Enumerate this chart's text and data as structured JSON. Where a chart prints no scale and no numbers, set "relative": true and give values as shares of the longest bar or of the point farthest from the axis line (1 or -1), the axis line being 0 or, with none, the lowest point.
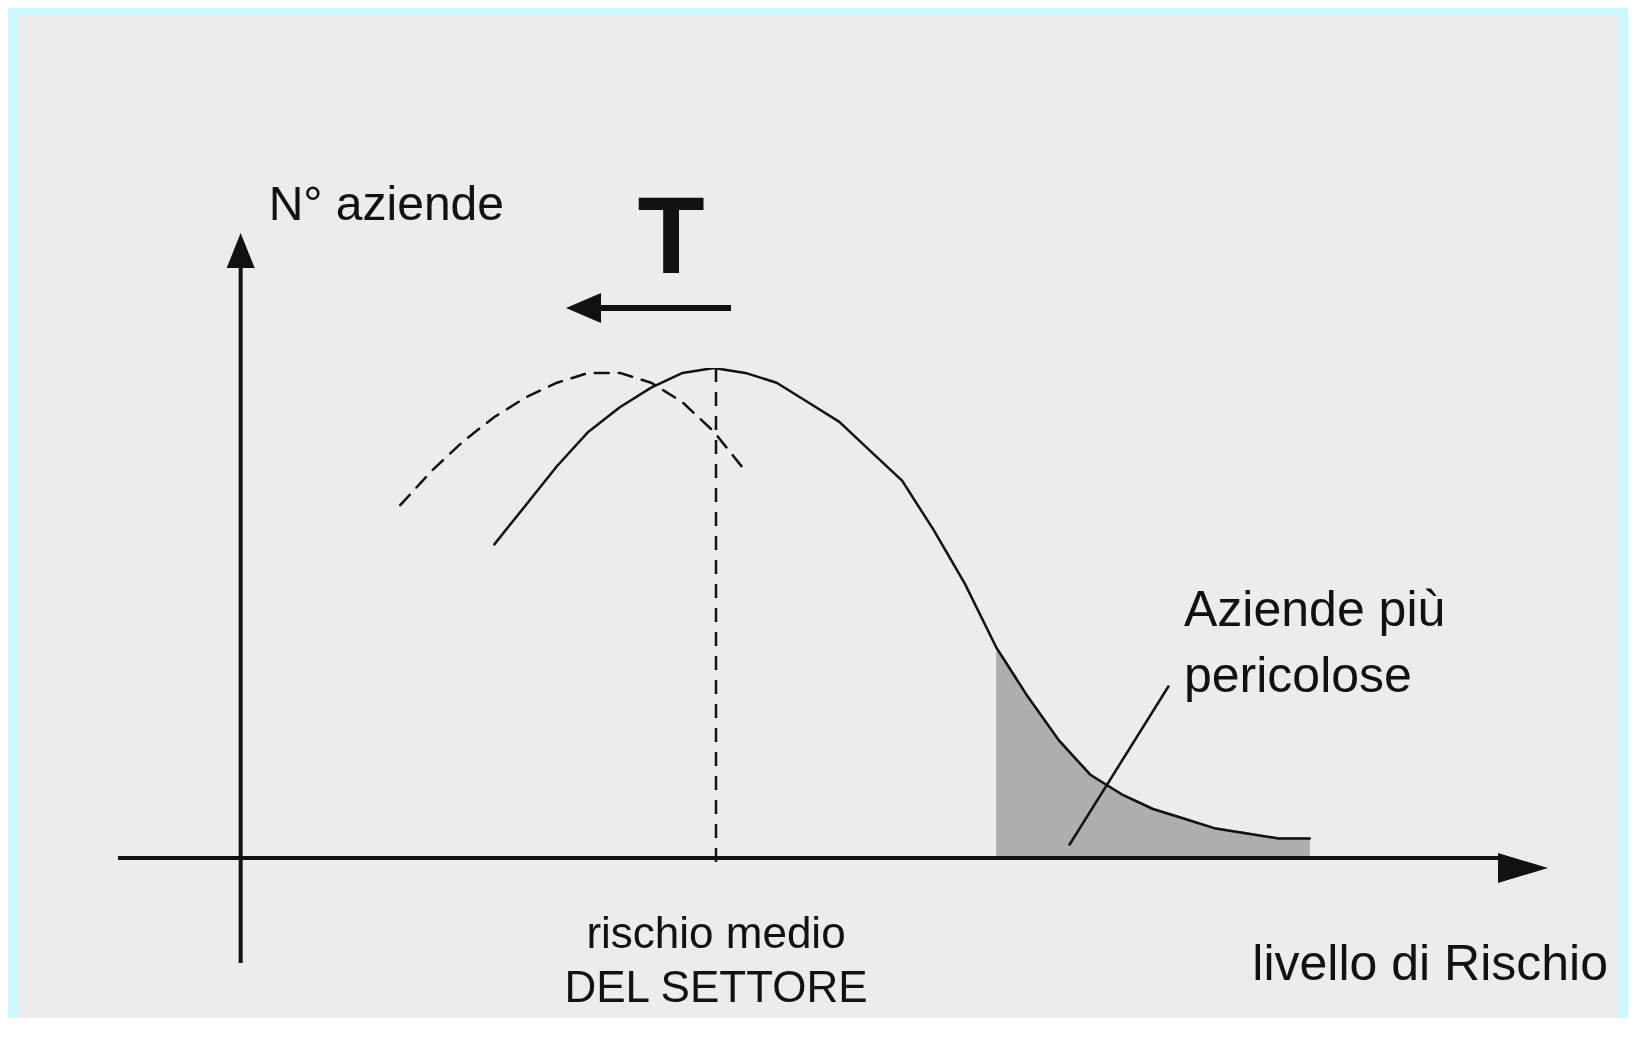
{
  "chart_data": {
    "type": "line",
    "relative": true,
    "xlabel": "livello di Rischio",
    "ylabel": "N° aziende",
    "grid": false,
    "legend": false,
    "marker": "none",
    "categories": [
      null,
      null,
      null,
      null,
      null,
      null,
      null,
      null,
      null,
      null,
      null,
      null,
      null,
      null,
      null,
      null,
      null,
      null,
      null,
      null,
      null,
      null,
      null,
      null,
      null,
      null,
      null,
      null,
      null,
      null,
      null,
      null,
      null,
      null,
      null,
      null,
      null,
      null,
      null,
      null,
      null,
      null,
      null,
      null,
      null
    ],
    "series": [
      {
        "color": "#111111",
        "line_style": "solid",
        "values": [
          null,
          null,
          null,
          null,
          null,
          null,
          null,
          null,
          null,
          null,
          null,
          null,
          0.64,
          0.72,
          0.8,
          0.87,
          0.92,
          0.96,
          0.99,
          1.0,
          0.99,
          0.97,
          0.93,
          0.89,
          0.83,
          0.77,
          0.67,
          0.56,
          0.43,
          0.33,
          0.24,
          0.17,
          0.13,
          0.1,
          0.08,
          0.06,
          0.05,
          0.04,
          0.04,
          null,
          null,
          null,
          null,
          null,
          null
        ]
      },
      {
        "color": "#111111",
        "line_style": "dashed",
        "values": [
          null,
          null,
          null,
          null,
          null,
          null,
          null,
          null,
          null,
          0.72,
          0.79,
          0.85,
          0.9,
          0.94,
          0.97,
          0.99,
          0.99,
          0.97,
          0.93,
          0.87,
          0.79,
          null,
          null,
          null,
          null,
          null,
          null,
          null,
          null,
          null,
          null,
          null,
          null,
          null,
          null,
          null,
          null,
          null,
          null,
          null,
          null,
          null,
          null,
          null,
          null
        ]
      },
      {
        "type": "area",
        "color": "#9a9a9a",
        "values": [
          null,
          null,
          null,
          null,
          null,
          null,
          null,
          null,
          null,
          null,
          null,
          null,
          null,
          null,
          null,
          null,
          null,
          null,
          null,
          null,
          null,
          null,
          null,
          null,
          null,
          null,
          null,
          null,
          0.43,
          0.33,
          0.24,
          0.17,
          0.13,
          0.1,
          0.08,
          0.06,
          0.05,
          0.04,
          0.04,
          null,
          null,
          null,
          null,
          null,
          null
        ]
      }
    ],
    "annotations": [
      "T",
      "Aziende più pericolose",
      "rischio medio DEL SETTORE"
    ]
  }
}
